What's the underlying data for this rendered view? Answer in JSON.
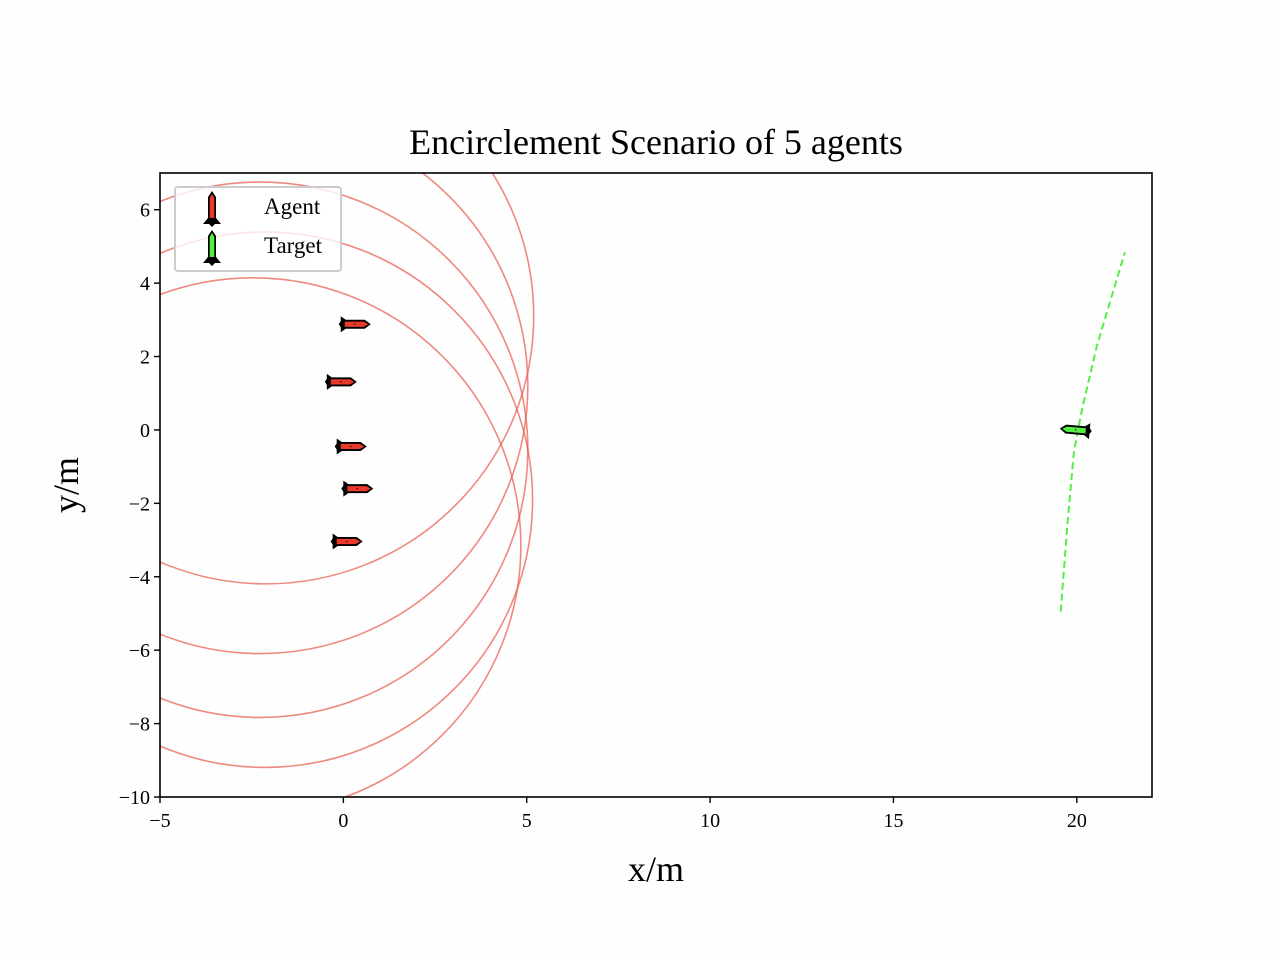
{
  "chart_data": {
    "type": "scatter",
    "title": "Encirclement Scenario of 5 agents",
    "xlabel": "x/m",
    "ylabel": "y/m",
    "xlim": [
      -5,
      22.05
    ],
    "ylim": [
      -10,
      7
    ],
    "xticks": [
      -5,
      0,
      5,
      10,
      15,
      20
    ],
    "xtick_labels": [
      "−5",
      "0",
      "5",
      "10",
      "15",
      "20"
    ],
    "yticks": [
      -10,
      -8,
      -6,
      -4,
      -2,
      0,
      2,
      4,
      6
    ],
    "ytick_labels": [
      "−10",
      "−8",
      "−6",
      "−4",
      "−2",
      "0",
      "2",
      "4",
      "6"
    ],
    "grid": false,
    "legend": {
      "position": "upper left",
      "entries": [
        {
          "label": "Agent",
          "marker": "rocket",
          "color": "#e8392a"
        },
        {
          "label": "Target",
          "marker": "rocket",
          "color": "#55ee44"
        }
      ]
    },
    "agents": [
      {
        "id": 1,
        "x": 0.31,
        "y": 2.88,
        "heading_deg": 0
      },
      {
        "id": 2,
        "x": -0.07,
        "y": 1.31,
        "heading_deg": 0
      },
      {
        "id": 3,
        "x": 0.2,
        "y": -0.45,
        "heading_deg": 0
      },
      {
        "id": 4,
        "x": 0.38,
        "y": -1.6,
        "heading_deg": 0
      },
      {
        "id": 5,
        "x": 0.09,
        "y": -3.04,
        "heading_deg": 0
      }
    ],
    "sensing_circles": {
      "color": "#e8574a",
      "alpha": 0.7,
      "circles": [
        {
          "cx": -2.11,
          "cy": 3.1,
          "r": 7.3
        },
        {
          "cx": -2.27,
          "cy": 1.2,
          "r": 7.3
        },
        {
          "cx": -2.27,
          "cy": -0.54,
          "r": 7.3
        },
        {
          "cx": -2.14,
          "cy": -1.9,
          "r": 7.3
        },
        {
          "cx": -2.46,
          "cy": -3.15,
          "r": 7.3
        }
      ]
    },
    "target": {
      "x": 19.97,
      "y": 0.0,
      "heading_deg": 175,
      "trajectory": {
        "style": "dashed",
        "color": "#55ee44",
        "points": [
          [
            19.56,
            -4.95
          ],
          [
            19.75,
            -2.5
          ],
          [
            19.92,
            -0.6
          ],
          [
            20.15,
            0.6
          ],
          [
            20.55,
            2.3
          ],
          [
            21.31,
            4.84
          ]
        ]
      }
    }
  }
}
